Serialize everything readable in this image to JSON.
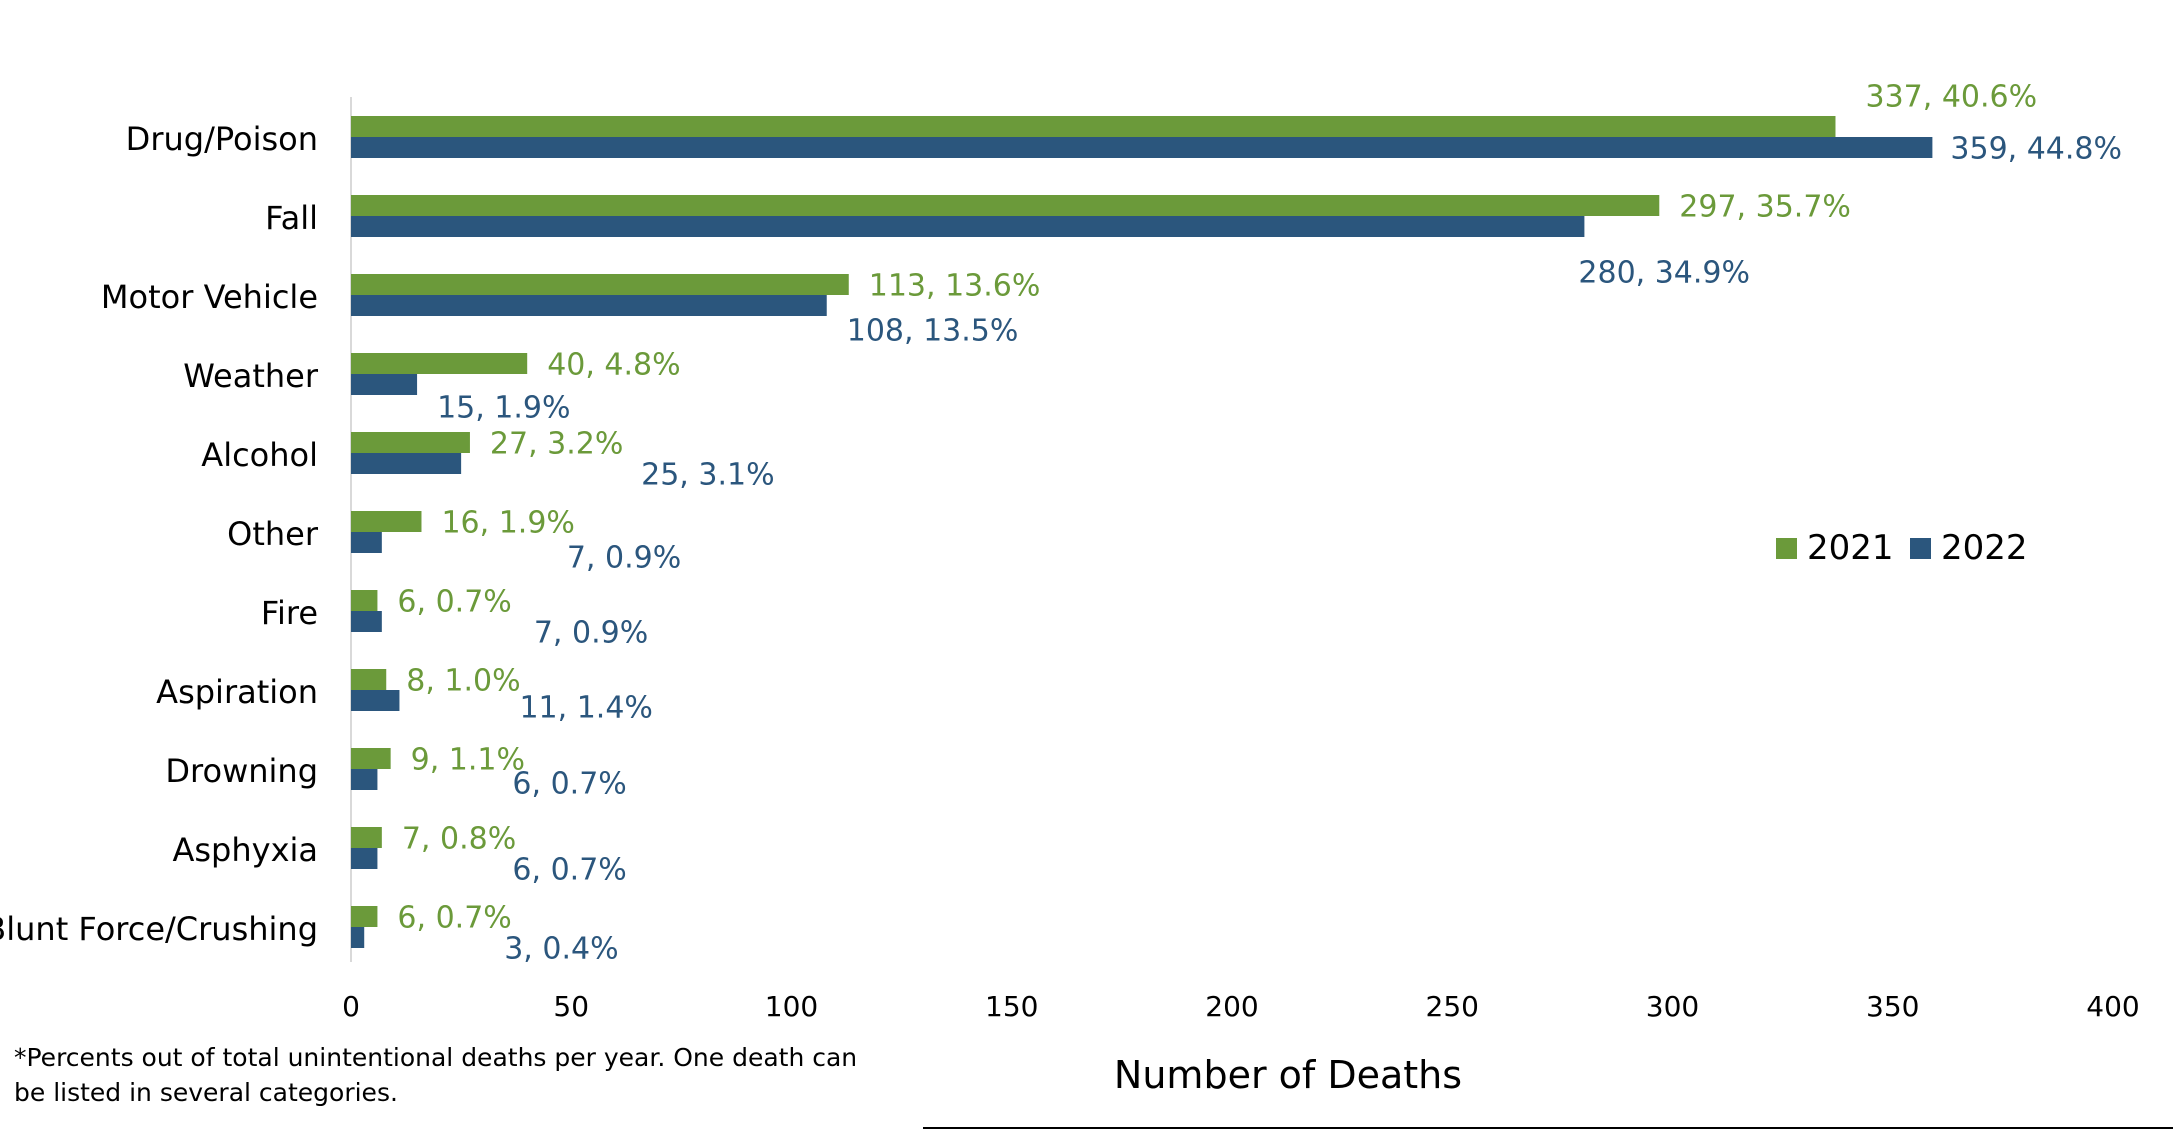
{
  "chart_data": {
    "type": "bar",
    "orientation": "horizontal",
    "categories": [
      "Drug/Poison",
      "Fall",
      "Motor Vehicle",
      "Weather",
      "Alcohol",
      "Other",
      "Fire",
      "Aspiration",
      "Drowning",
      "Asphyxia",
      "Blunt Force/Crushing"
    ],
    "series": [
      {
        "name": "2021",
        "color": "#6b9a3a",
        "values": [
          337,
          297,
          113,
          40,
          27,
          16,
          6,
          8,
          9,
          7,
          6
        ],
        "labels": [
          "337, 40.6%",
          "297, 35.7%",
          "113, 13.6%",
          "40, 4.8%",
          "27, 3.2%",
          "16, 1.9%",
          "6, 0.7%",
          "8, 1.0%",
          "9, 1.1%",
          "7, 0.8%",
          "6, 0.7%"
        ]
      },
      {
        "name": "2022",
        "color": "#2b567d",
        "values": [
          359,
          280,
          108,
          15,
          25,
          7,
          7,
          11,
          6,
          6,
          3
        ],
        "labels": [
          "359, 44.8%",
          "280, 34.9%",
          "108, 13.5%",
          "15, 1.9%",
          "25, 3.1%",
          "7, 0.9%",
          "7, 0.9%",
          "11, 1.4%",
          "6, 0.7%",
          "6, 0.7%",
          "3, 0.4%"
        ]
      }
    ],
    "xlabel": "Number of Deaths",
    "ylabel": "",
    "xlim": [
      0,
      400
    ],
    "xticks": [
      0,
      50,
      100,
      150,
      200,
      250,
      300,
      350,
      400
    ],
    "legend": "right",
    "grid": false
  },
  "footnote": "*Percents out of total unintentional deaths per year. One death can be listed in several categories."
}
